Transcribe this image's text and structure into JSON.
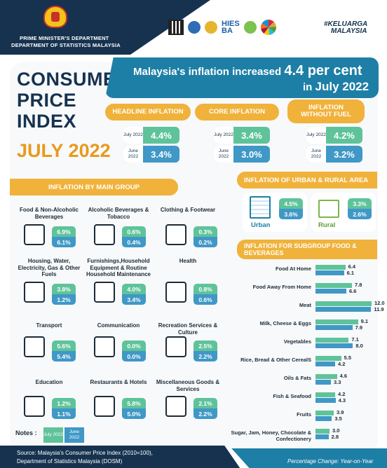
{
  "header": {
    "dept_line1": "PRIME MINISTER'S DEPARTMENT",
    "dept_line2": "DEPARTMENT OF STATISTICS MALAYSIA",
    "logo_hies": "HIES",
    "logo_ba": "BA",
    "logo_keluarga1": "#KELUARGA",
    "logo_keluarga2": "MALAYSIA",
    "colors": {
      "navy": "#16324f",
      "teal": "#1e7fa6",
      "orange": "#f0b23a",
      "green": "#5fc39a",
      "blue": "#3f98c6"
    }
  },
  "title": {
    "line1": "CONSUMER",
    "line2": "PRICE",
    "line3": "INDEX",
    "date": "JULY 2022"
  },
  "banner": {
    "text1": "Malaysia's inflation increased",
    "value": "4.4 per cent",
    "text2": "in",
    "month": "July 2022"
  },
  "summary": [
    {
      "label": "HEADLINE INFLATION",
      "july": "4.4%",
      "june": "3.4%"
    },
    {
      "label": "CORE INFLATION",
      "july": "3.4%",
      "june": "3.0%"
    },
    {
      "label": "INFLATION WITHOUT FUEL",
      "july": "4.2%",
      "june": "3.2%"
    }
  ],
  "metric_labels": {
    "july": "July 2022",
    "june": "June 2022"
  },
  "main_group": {
    "title": "INFLATION BY MAIN GROUP",
    "items": [
      {
        "name": "Food & Non-Alcoholic Beverages",
        "july": "6.9%",
        "june": "6.1%"
      },
      {
        "name": "Alcoholic Beverages & Tobacco",
        "july": "0.6%",
        "june": "0.4%"
      },
      {
        "name": "Clothing & Footwear",
        "july": "0.3%",
        "june": "0.2%"
      },
      {
        "name": "Housing, Water, Electricity, Gas & Other Fuels",
        "july": "3.8%",
        "june": "1.2%"
      },
      {
        "name": "Furnishings,Household Equipment & Routine Household Maintenance",
        "july": "4.0%",
        "june": "3.4%"
      },
      {
        "name": "Health",
        "july": "0.8%",
        "june": "0.6%"
      },
      {
        "name": "Transport",
        "july": "5.6%",
        "june": "5.4%"
      },
      {
        "name": "Communication",
        "july": "0.0%",
        "june": "0.0%"
      },
      {
        "name": "Recreation Services & Culture",
        "july": "2.5%",
        "june": "2.2%"
      },
      {
        "name": "Education",
        "july": "1.2%",
        "june": "1.1%"
      },
      {
        "name": "Restaurants & Hotels",
        "july": "5.8%",
        "june": "5.0%"
      },
      {
        "name": "Miscellaneous Goods & Services",
        "july": "2.1%",
        "june": "2.2%"
      }
    ]
  },
  "urban_rural": {
    "title": "INFLATION OF URBAN & RURAL AREA",
    "urban": {
      "label": "Urban",
      "july": "4.5%",
      "june": "3.6%"
    },
    "rural": {
      "label": "Rural",
      "july": "3.3%",
      "june": "2.6%"
    }
  },
  "chart_data": {
    "type": "bar",
    "title": "INFLATION FOR SUBGROUP FOOD & BEVERAGES",
    "categories": [
      "Food At Home",
      "Food Away From Home",
      "Meat",
      "Milk, Cheese & Eggs",
      "Vegetables",
      "Rice, Bread & Other CerealS",
      "Oils & Fats",
      "Fish & Seafood",
      "Fruits",
      "Sugar, Jam, Honey, Chocolate & Confectionery"
    ],
    "series": [
      {
        "name": "July 2022",
        "values": [
          6.4,
          7.8,
          12.0,
          9.1,
          7.1,
          5.5,
          4.6,
          4.2,
          3.9,
          3.0
        ]
      },
      {
        "name": "June 2022",
        "values": [
          6.1,
          6.6,
          11.9,
          7.9,
          8.0,
          4.2,
          3.3,
          4.3,
          3.5,
          2.8
        ]
      }
    ],
    "labels": {
      "july": [
        "6.4",
        "7.8",
        "12.0",
        "9.1",
        "7.1",
        "5.5",
        "4.6",
        "4.2",
        "3.9",
        "3.0"
      ],
      "june": [
        "6.1",
        "6.6",
        "11.9",
        "7.9",
        "8.0",
        "4.2",
        "3.3",
        "4.3",
        "3.5",
        "2.8"
      ]
    },
    "xlim": [
      0,
      12
    ]
  },
  "notes": {
    "label": "Notes :",
    "july": "July 2022",
    "june": "June 2022"
  },
  "footer": {
    "source1": "Source: Malaysia's Consumer Price Index (2010=100),",
    "source2": "Department of Statistics Malaysia (DOSM)",
    "change": "Percentage Change: Year-on-Year"
  }
}
